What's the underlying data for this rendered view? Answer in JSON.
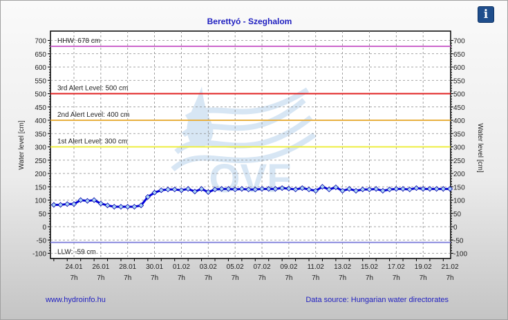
{
  "chart_data": {
    "type": "line",
    "title": "Berettyó - Szeghalom",
    "ylabel": "Water level [cm]",
    "ylabel_right": "Water level [cm]",
    "ylim": [
      -100,
      700
    ],
    "yticks": [
      700,
      650,
      600,
      550,
      500,
      450,
      400,
      350,
      300,
      250,
      200,
      150,
      100,
      50,
      0,
      -50,
      -100
    ],
    "xticks": [
      {
        "d": "24.01",
        "h": "7h"
      },
      {
        "d": "26.01",
        "h": "7h"
      },
      {
        "d": "28.01",
        "h": "7h"
      },
      {
        "d": "30.01",
        "h": "7h"
      },
      {
        "d": "01.02",
        "h": "7h"
      },
      {
        "d": "03.02",
        "h": "7h"
      },
      {
        "d": "05.02",
        "h": "7h"
      },
      {
        "d": "07.02",
        "h": "7h"
      },
      {
        "d": "09.02",
        "h": "7h"
      },
      {
        "d": "11.02",
        "h": "7h"
      },
      {
        "d": "13.02",
        "h": "7h"
      },
      {
        "d": "15.02",
        "h": "7h"
      },
      {
        "d": "17.02",
        "h": "7h"
      },
      {
        "d": "19.02",
        "h": "7h"
      },
      {
        "d": "21.02",
        "h": "7h"
      }
    ],
    "x_unit": "days since 24.01 7h, 12h step",
    "x_start": -1.5,
    "x_step": 0.5,
    "grid": true,
    "series": [
      {
        "name": "Water level",
        "color": "#0000dd",
        "values": [
          82,
          82,
          85,
          85,
          100,
          97,
          100,
          87,
          80,
          75,
          75,
          75,
          75,
          80,
          112,
          128,
          137,
          140,
          140,
          137,
          142,
          132,
          142,
          130,
          140,
          142,
          142,
          140,
          142,
          140,
          140,
          142,
          142,
          142,
          145,
          143,
          140,
          145,
          140,
          135,
          150,
          140,
          148,
          135,
          142,
          135,
          140,
          140,
          142,
          135,
          140,
          142,
          142,
          140,
          145,
          142,
          142,
          142,
          142,
          142
        ]
      }
    ],
    "reference_lines": [
      {
        "label": "HHW: 678 cm",
        "value": 678,
        "color": "#cc66cc"
      },
      {
        "label": "3rd Alert Level: 500 cm",
        "value": 500,
        "color": "#e02020"
      },
      {
        "label": "2nd Alert Level: 400 cm",
        "value": 400,
        "color": "#e8b040"
      },
      {
        "label": "1st Alert Level: 300 cm",
        "value": 300,
        "color": "#eeee40"
      },
      {
        "label": "LLW: -59 cm",
        "value": -59,
        "color": "#8888dd"
      }
    ],
    "watermark": "OVF"
  },
  "footer": {
    "left": "www.hydroinfo.hu",
    "right": "Data source: Hungarian water directorates"
  },
  "info_icon": "i"
}
